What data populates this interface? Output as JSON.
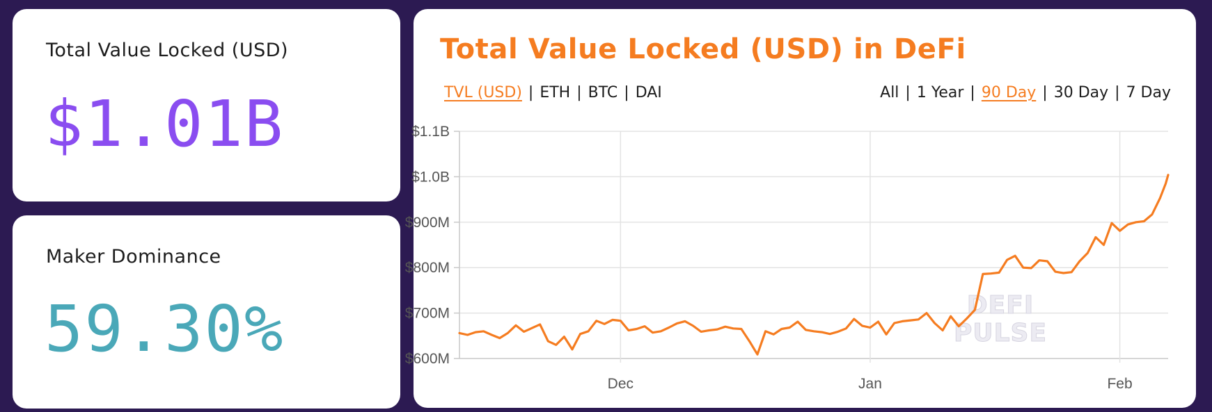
{
  "cards": {
    "tvl": {
      "label": "Total Value Locked (USD)",
      "value": "$1.01B",
      "color": "#8a4df0"
    },
    "dominance": {
      "label": "Maker Dominance",
      "value": "59.30%",
      "color": "#4aa8b8"
    }
  },
  "chart": {
    "title": "Total Value Locked (USD) in DeFi",
    "metrics": [
      {
        "label": "TVL (USD)",
        "active": true
      },
      {
        "label": "ETH",
        "active": false
      },
      {
        "label": "BTC",
        "active": false
      },
      {
        "label": "DAI",
        "active": false
      }
    ],
    "periods": [
      {
        "label": "All",
        "active": false
      },
      {
        "label": "1 Year",
        "active": false
      },
      {
        "label": "90 Day",
        "active": true
      },
      {
        "label": "30 Day",
        "active": false
      },
      {
        "label": "7 Day",
        "active": false
      }
    ],
    "separator": "|",
    "watermark": [
      "DEFI",
      "PULSE"
    ],
    "accent_color": "#f57c20"
  },
  "chart_data": {
    "type": "line",
    "title": "Total Value Locked (USD) in DeFi",
    "xlabel": "",
    "ylabel": "",
    "y_unit": "USD (millions)",
    "ylim": [
      600,
      1100
    ],
    "y_ticks": [
      {
        "value": 1100,
        "label": "$1.1B"
      },
      {
        "value": 1000,
        "label": "$1.0B"
      },
      {
        "value": 900,
        "label": "$900M"
      },
      {
        "value": 800,
        "label": "$800M"
      },
      {
        "value": 700,
        "label": "$700M"
      },
      {
        "value": 600,
        "label": "$600M"
      }
    ],
    "x_ticks": [
      {
        "value": 0,
        "label": "Dec"
      },
      {
        "value": 31,
        "label": "Jan"
      },
      {
        "value": 62,
        "label": "Feb"
      }
    ],
    "xlim": [
      -20,
      68
    ],
    "grid": true,
    "series": [
      {
        "color": "#f57c20",
        "x": [
          -20,
          -19,
          -18,
          -17,
          -16,
          -15,
          -14,
          -13,
          -12,
          -11,
          -10,
          -9,
          -8,
          -7,
          -6,
          -5,
          -4,
          -3,
          -2,
          -1,
          0,
          1,
          2,
          3,
          4,
          5,
          6,
          7,
          8,
          9,
          10,
          11,
          12,
          13,
          14,
          15,
          16,
          17,
          18,
          19,
          20,
          21,
          22,
          23,
          24,
          25,
          26,
          27,
          28,
          29,
          30,
          31,
          32,
          33,
          34,
          35,
          36,
          37,
          38,
          39,
          40,
          41,
          42,
          43,
          44,
          45,
          46,
          47,
          48,
          49,
          50,
          51,
          52,
          53,
          54,
          55,
          56,
          57,
          58,
          59,
          60,
          61,
          62,
          63,
          64,
          65,
          66,
          67,
          67.7,
          68
        ],
        "values": [
          656,
          652,
          658,
          660,
          652,
          645,
          656,
          673,
          659,
          667,
          675,
          638,
          630,
          648,
          620,
          654,
          660,
          683,
          676,
          685,
          683,
          662,
          665,
          671,
          657,
          660,
          668,
          677,
          682,
          672,
          659,
          662,
          664,
          670,
          666,
          665,
          638,
          609,
          660,
          653,
          665,
          668,
          681,
          663,
          660,
          658,
          654,
          659,
          666,
          687,
          672,
          668,
          681,
          653,
          678,
          682,
          684,
          686,
          700,
          678,
          662,
          693,
          671,
          688,
          707,
          786,
          787,
          789,
          817,
          826,
          800,
          799,
          816,
          814,
          791,
          788,
          790,
          814,
          832,
          867,
          850,
          898,
          881,
          895,
          900,
          902,
          917,
          953,
          985,
          1004
        ]
      }
    ]
  }
}
